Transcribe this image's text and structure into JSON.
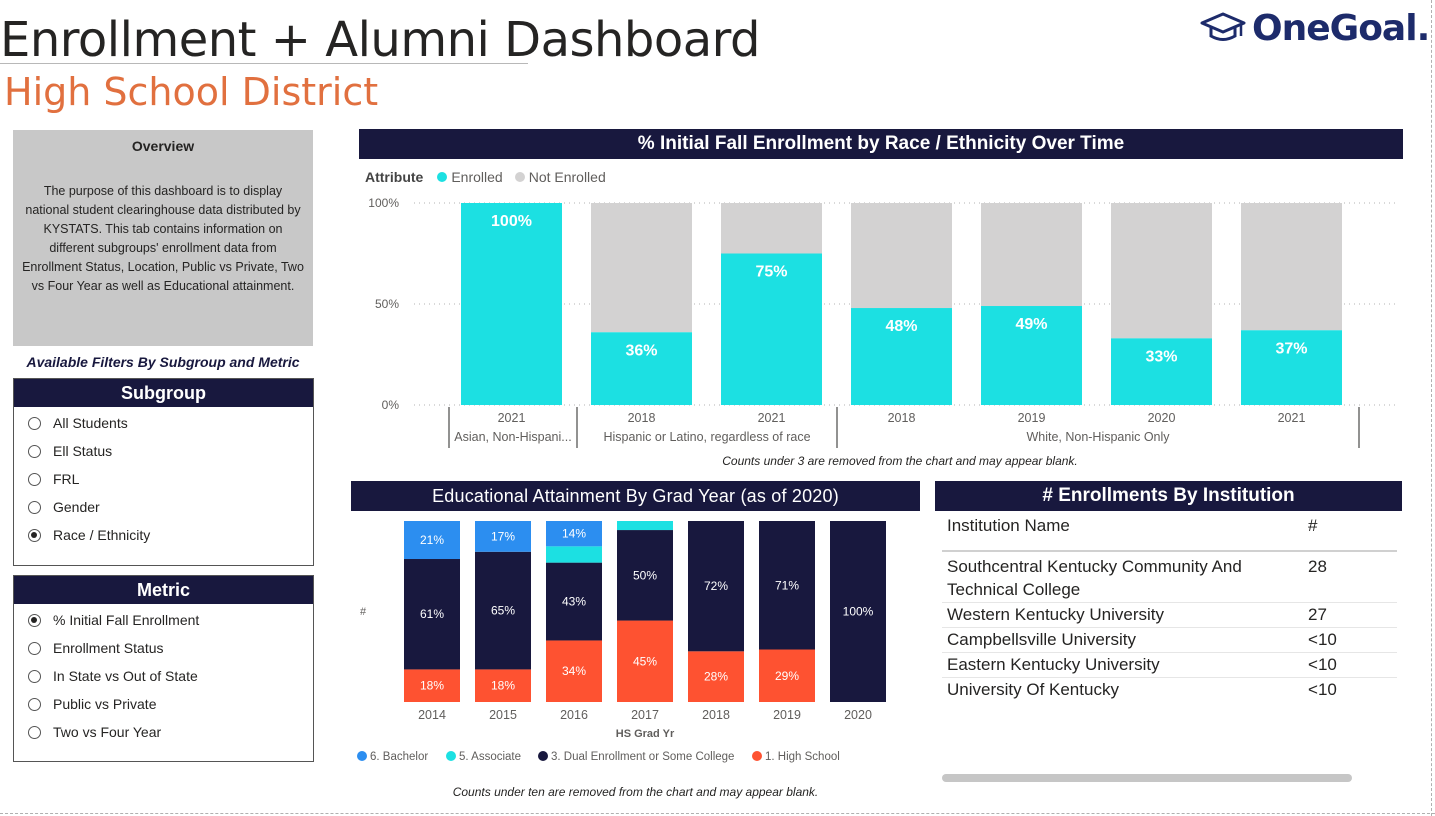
{
  "header": {
    "title": "Enrollment + Alumni Dashboard",
    "subtitle": "High School District",
    "logo_text": "OneGoal.",
    "logo_icon": "graduation-cap-icon"
  },
  "overview": {
    "heading": "Overview",
    "text": "The purpose of this dashboard is to display national student clearinghouse data distributed by KYSTATS. This tab contains information on different subgroups' enrollment data from Enrollment Status, Location, Public vs Private, Two vs Four Year as well as Educational attainment."
  },
  "filters": {
    "label": "Available Filters By Subgroup and Metric",
    "subgroup": {
      "title": "Subgroup",
      "options": [
        {
          "label": "All Students",
          "selected": false
        },
        {
          "label": "Ell Status",
          "selected": false
        },
        {
          "label": "FRL",
          "selected": false
        },
        {
          "label": "Gender",
          "selected": false
        },
        {
          "label": "Race / Ethnicity",
          "selected": true
        }
      ]
    },
    "metric": {
      "title": "Metric",
      "options": [
        {
          "label": "% Initial Fall Enrollment",
          "selected": true
        },
        {
          "label": "Enrollment Status",
          "selected": false
        },
        {
          "label": "In State vs Out of State",
          "selected": false
        },
        {
          "label": "Public vs Private",
          "selected": false
        },
        {
          "label": "Two vs Four Year",
          "selected": false
        }
      ]
    }
  },
  "colors": {
    "navy": "#18183e",
    "cyan": "#1ce0e2",
    "light_gray": "#d3d2d2",
    "bachelor": "#2c8ef0",
    "associate": "#1ce0e2",
    "dual": "#18183e",
    "high_school": "#fe5231",
    "accent_orange": "#e1703f"
  },
  "enrollment_chart": {
    "title": "% Initial Fall Enrollment by Race / Ethnicity Over Time",
    "legend_title": "Attribute",
    "note": "Counts under 3 are removed from the chart and may appear blank."
  },
  "attainment_chart": {
    "title": "Educational Attainment By Grad Year (as of 2020)",
    "note": "Counts under ten are removed from the chart and may appear blank."
  },
  "institution_table": {
    "title": "# Enrollments By Institution",
    "headers": [
      "Institution Name",
      "#"
    ],
    "rows": [
      {
        "name": "Southcentral Kentucky Community And Technical College",
        "count": "28"
      },
      {
        "name": "Western Kentucky University",
        "count": "27"
      },
      {
        "name": "Campbellsville University",
        "count": "<10"
      },
      {
        "name": "Eastern Kentucky University",
        "count": "<10"
      },
      {
        "name": "University Of Kentucky",
        "count": "<10"
      }
    ]
  },
  "chart_data": [
    {
      "type": "bar",
      "stacked": true,
      "title": "% Initial Fall Enrollment by Race / Ethnicity Over Time",
      "legend_title": "Attribute",
      "legend_position": "top-left",
      "series": [
        {
          "name": "Enrolled",
          "color": "#1ce0e2",
          "values": [
            100,
            36,
            75,
            48,
            49,
            33,
            37
          ]
        },
        {
          "name": "Not Enrolled",
          "color": "#d3d2d2",
          "values": [
            0,
            64,
            25,
            52,
            51,
            67,
            63
          ]
        }
      ],
      "categories": [
        "2021",
        "2018",
        "2021",
        "2018",
        "2019",
        "2020",
        "2021"
      ],
      "groups": [
        {
          "label": "Asian, Non-Hispani...",
          "count": 1
        },
        {
          "label": "Hispanic or Latino, regardless of race",
          "count": 2
        },
        {
          "label": "White, Non-Hispanic Only",
          "count": 4
        }
      ],
      "data_labels": [
        "100%",
        "36%",
        "75%",
        "48%",
        "49%",
        "33%",
        "37%"
      ],
      "y_ticks": [
        "0%",
        "50%",
        "100%"
      ],
      "ylim": [
        0,
        100
      ],
      "grid": true
    },
    {
      "type": "bar",
      "stacked": true,
      "title": "Educational Attainment By Grad Year (as of 2020)",
      "xlabel": "HS Grad Yr",
      "ylabel": "#",
      "legend_position": "bottom",
      "categories": [
        "2014",
        "2015",
        "2016",
        "2017",
        "2018",
        "2019",
        "2020"
      ],
      "series": [
        {
          "name": "6. Bachelor",
          "color": "#2c8ef0",
          "values": [
            21,
            17,
            14,
            0,
            0,
            0,
            0
          ],
          "labels": [
            "21%",
            "17%",
            "14%",
            "",
            "",
            "",
            ""
          ]
        },
        {
          "name": "5. Associate",
          "color": "#1ce0e2",
          "values": [
            0,
            0,
            9,
            5,
            0,
            0,
            0
          ],
          "labels": [
            "",
            "",
            "",
            "",
            "",
            "",
            ""
          ]
        },
        {
          "name": "3. Dual Enrollment or Some College",
          "color": "#18183e",
          "values": [
            61,
            65,
            43,
            50,
            72,
            71,
            100
          ],
          "labels": [
            "61%",
            "65%",
            "43%",
            "50%",
            "72%",
            "71%",
            "100%"
          ]
        },
        {
          "name": "1. High School",
          "color": "#fe5231",
          "values": [
            18,
            18,
            34,
            45,
            28,
            29,
            0
          ],
          "labels": [
            "18%",
            "18%",
            "34%",
            "45%",
            "28%",
            "29%",
            ""
          ]
        }
      ],
      "ylim": [
        0,
        100
      ]
    }
  ]
}
